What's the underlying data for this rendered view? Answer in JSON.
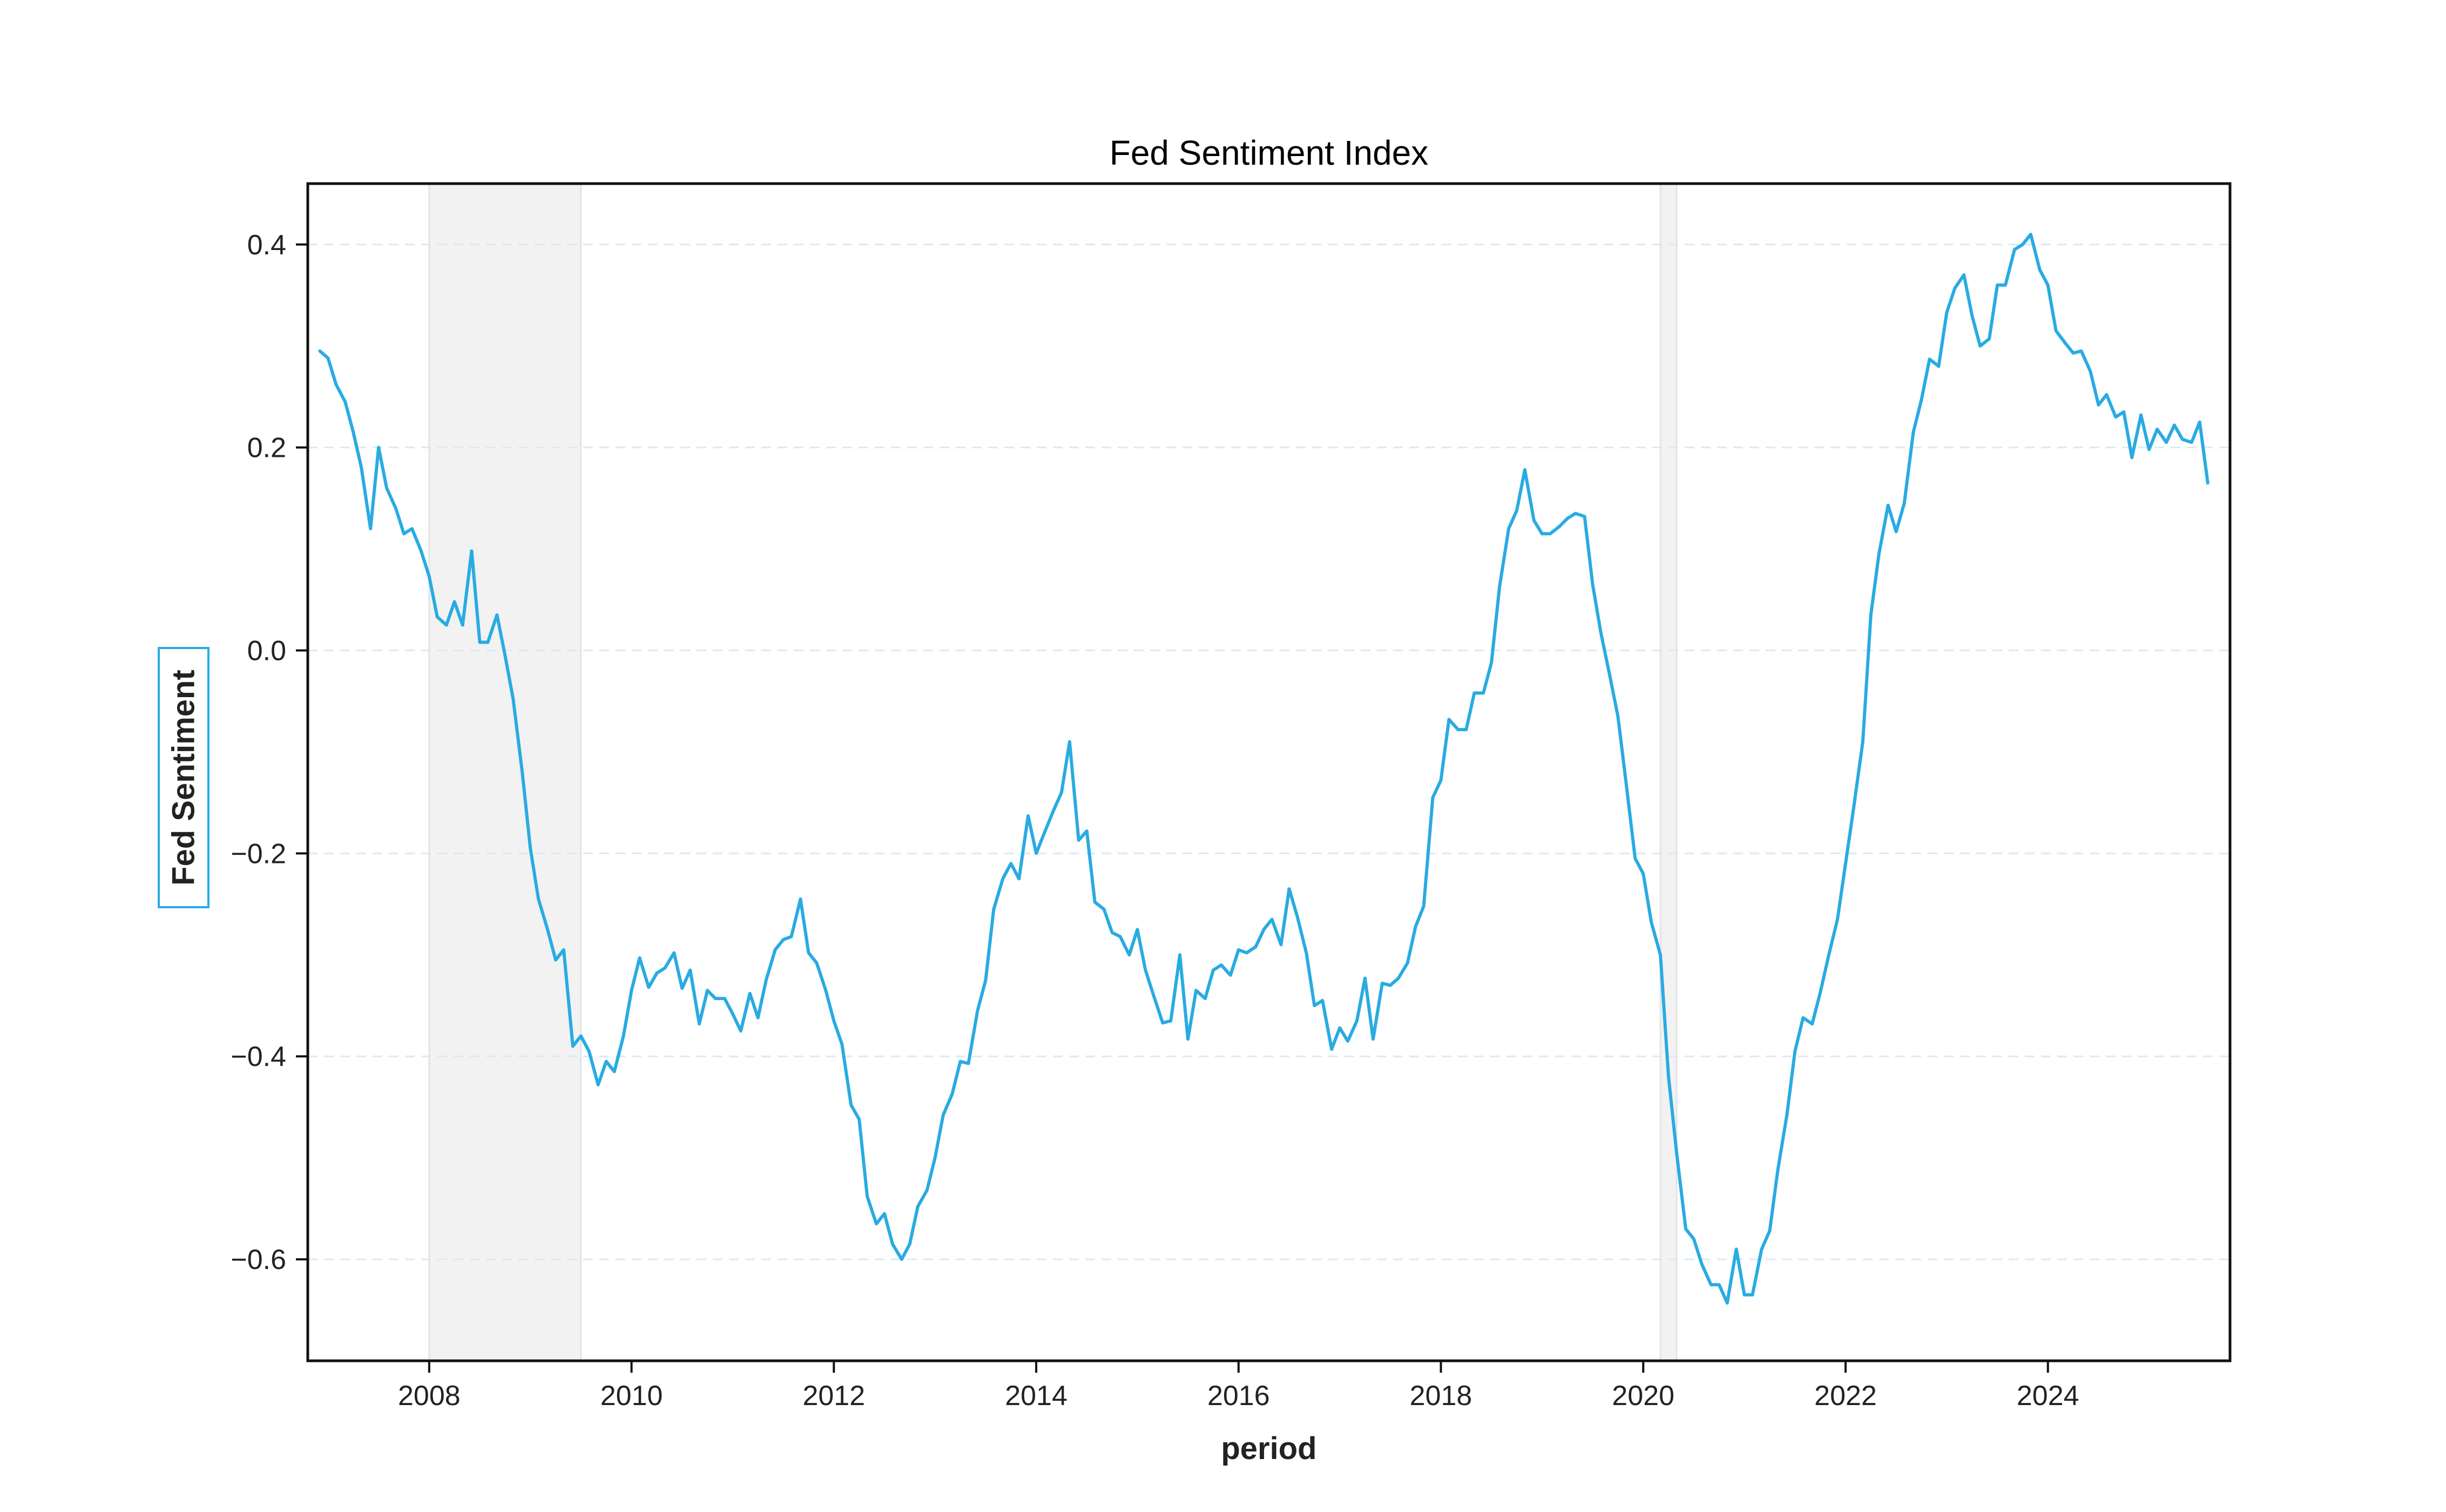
{
  "chart_data": {
    "type": "line",
    "title": "Fed Sentiment Index",
    "xlabel": "period",
    "ylabel": "Fed Sentiment",
    "xlim": [
      2006.8,
      2025.8
    ],
    "ylim": [
      -0.7,
      0.46
    ],
    "x_ticks": [
      2008,
      2010,
      2012,
      2014,
      2016,
      2018,
      2020,
      2022,
      2024
    ],
    "x_tick_labels": [
      "2008",
      "2010",
      "2012",
      "2014",
      "2016",
      "2018",
      "2020",
      "2022",
      "2024"
    ],
    "y_ticks": [
      0.4,
      0.2,
      0.0,
      -0.2,
      -0.4,
      -0.6
    ],
    "y_tick_labels": [
      "0.4",
      "0.2",
      "0.0",
      "−0.2",
      "−0.4",
      "−0.6"
    ],
    "grid": "horizontal dashed",
    "line_color": "#29abe2",
    "shaded_periods": [
      [
        2008.0,
        2009.5
      ],
      [
        2020.17,
        2020.33
      ]
    ],
    "series": [
      {
        "x": [
          2006.92,
          2007.0,
          2007.08,
          2007.17,
          2007.25,
          2007.33,
          2007.42,
          2007.5,
          2007.58,
          2007.67,
          2007.75,
          2007.83,
          2007.92,
          2008.0,
          2008.08,
          2008.17,
          2008.25,
          2008.33,
          2008.42,
          2008.5,
          2008.58,
          2008.67,
          2008.75,
          2008.83,
          2008.92,
          2009.0,
          2009.08,
          2009.17,
          2009.25,
          2009.33,
          2009.42,
          2009.5,
          2009.58,
          2009.67,
          2009.75,
          2009.83,
          2009.92,
          2010.0,
          2010.08,
          2010.17,
          2010.25,
          2010.33,
          2010.42,
          2010.5,
          2010.58,
          2010.67,
          2010.75,
          2010.83,
          2010.92,
          2011.0,
          2011.08,
          2011.17,
          2011.25,
          2011.33,
          2011.42,
          2011.5,
          2011.58,
          2011.67,
          2011.75,
          2011.83,
          2011.92,
          2012.0,
          2012.08,
          2012.17,
          2012.25,
          2012.33,
          2012.42,
          2012.5,
          2012.58,
          2012.67,
          2012.75,
          2012.83,
          2012.92,
          2013.0,
          2013.08,
          2013.17,
          2013.25,
          2013.33,
          2013.42,
          2013.5,
          2013.58,
          2013.67,
          2013.75,
          2013.83,
          2013.92,
          2014.0,
          2014.08,
          2014.17,
          2014.25,
          2014.33,
          2014.42,
          2014.5,
          2014.58,
          2014.67,
          2014.75,
          2014.83,
          2014.92,
          2015.0,
          2015.08,
          2015.17,
          2015.25,
          2015.33,
          2015.42,
          2015.5,
          2015.58,
          2015.67,
          2015.75,
          2015.83,
          2015.92,
          2016.0,
          2016.08,
          2016.17,
          2016.25,
          2016.33,
          2016.42,
          2016.5,
          2016.58,
          2016.67,
          2016.75,
          2016.83,
          2016.92,
          2017.0,
          2017.08,
          2017.17,
          2017.25,
          2017.33,
          2017.42,
          2017.5,
          2017.58,
          2017.67,
          2017.75,
          2017.83,
          2017.92,
          2018.0,
          2018.08,
          2018.17,
          2018.25,
          2018.33,
          2018.42,
          2018.5,
          2018.58,
          2018.67,
          2018.75,
          2018.83,
          2018.92,
          2019.0,
          2019.08,
          2019.17,
          2019.25,
          2019.33,
          2019.42,
          2019.5,
          2019.58,
          2019.67,
          2019.75,
          2019.83,
          2019.92,
          2020.0,
          2020.08,
          2020.17,
          2020.25,
          2020.33,
          2020.42,
          2020.5,
          2020.58,
          2020.67,
          2020.75,
          2020.83,
          2020.92,
          2021.0,
          2021.08,
          2021.17,
          2021.25,
          2021.33,
          2021.42,
          2021.5,
          2021.58,
          2021.67,
          2021.75,
          2021.83,
          2021.92,
          2022.0,
          2022.08,
          2022.17,
          2022.25,
          2022.33,
          2022.42,
          2022.5,
          2022.58,
          2022.67,
          2022.75,
          2022.83,
          2022.92,
          2023.0,
          2023.08,
          2023.17,
          2023.25,
          2023.33,
          2023.42,
          2023.5,
          2023.58,
          2023.67,
          2023.75,
          2023.83,
          2023.92,
          2024.0,
          2024.08,
          2024.17,
          2024.25,
          2024.33,
          2024.42,
          2024.5,
          2024.58,
          2024.67,
          2024.75,
          2024.83,
          2024.92,
          2025.0,
          2025.08,
          2025.17,
          2025.25,
          2025.33,
          2025.42,
          2025.5,
          2025.58
        ],
        "y": [
          0.295,
          0.288,
          0.262,
          0.245,
          0.215,
          0.18,
          0.12,
          0.2,
          0.16,
          0.14,
          0.115,
          0.12,
          0.098,
          0.073,
          0.033,
          0.025,
          0.048,
          0.025,
          0.098,
          0.008,
          0.008,
          0.035,
          -0.005,
          -0.048,
          -0.12,
          -0.195,
          -0.245,
          -0.275,
          -0.305,
          -0.295,
          -0.39,
          -0.38,
          -0.395,
          -0.428,
          -0.405,
          -0.415,
          -0.38,
          -0.335,
          -0.303,
          -0.332,
          -0.318,
          -0.313,
          -0.298,
          -0.333,
          -0.315,
          -0.368,
          -0.335,
          -0.343,
          -0.343,
          -0.358,
          -0.375,
          -0.338,
          -0.362,
          -0.325,
          -0.295,
          -0.285,
          -0.282,
          -0.245,
          -0.298,
          -0.308,
          -0.335,
          -0.365,
          -0.388,
          -0.448,
          -0.462,
          -0.538,
          -0.565,
          -0.555,
          -0.585,
          -0.6,
          -0.585,
          -0.548,
          -0.532,
          -0.5,
          -0.458,
          -0.437,
          -0.405,
          -0.407,
          -0.355,
          -0.325,
          -0.255,
          -0.225,
          -0.21,
          -0.225,
          -0.163,
          -0.2,
          -0.18,
          -0.158,
          -0.14,
          -0.09,
          -0.187,
          -0.178,
          -0.248,
          -0.255,
          -0.278,
          -0.282,
          -0.3,
          -0.275,
          -0.315,
          -0.343,
          -0.367,
          -0.365,
          -0.3,
          -0.383,
          -0.335,
          -0.343,
          -0.315,
          -0.31,
          -0.32,
          -0.295,
          -0.298,
          -0.292,
          -0.275,
          -0.265,
          -0.29,
          -0.235,
          -0.262,
          -0.298,
          -0.35,
          -0.345,
          -0.393,
          -0.372,
          -0.385,
          -0.365,
          -0.323,
          -0.383,
          -0.328,
          -0.33,
          -0.323,
          -0.308,
          -0.272,
          -0.252,
          -0.145,
          -0.128,
          -0.068,
          -0.078,
          -0.078,
          -0.042,
          -0.042,
          -0.012,
          0.063,
          0.12,
          0.138,
          0.178,
          0.128,
          0.115,
          0.115,
          0.122,
          0.13,
          0.135,
          0.132,
          0.065,
          0.018,
          -0.025,
          -0.065,
          -0.13,
          -0.205,
          -0.22,
          -0.268,
          -0.3,
          -0.42,
          -0.495,
          -0.57,
          -0.58,
          -0.605,
          -0.625,
          -0.625,
          -0.643,
          -0.59,
          -0.635,
          -0.635,
          -0.59,
          -0.572,
          -0.512,
          -0.458,
          -0.395,
          -0.362,
          -0.368,
          -0.337,
          -0.302,
          -0.265,
          -0.21,
          -0.155,
          -0.09,
          0.035,
          0.095,
          0.143,
          0.117,
          0.145,
          0.215,
          0.247,
          0.287,
          0.28,
          0.333,
          0.357,
          0.37,
          0.33,
          0.3,
          0.307,
          0.36,
          0.36,
          0.395,
          0.4,
          0.41,
          0.375,
          0.36,
          0.315,
          0.303,
          0.293,
          0.295,
          0.275,
          0.242,
          0.252,
          0.23,
          0.235,
          0.19,
          0.232,
          0.198,
          0.218,
          0.205,
          0.222,
          0.208,
          0.205,
          0.225,
          0.165
        ]
      }
    ]
  }
}
